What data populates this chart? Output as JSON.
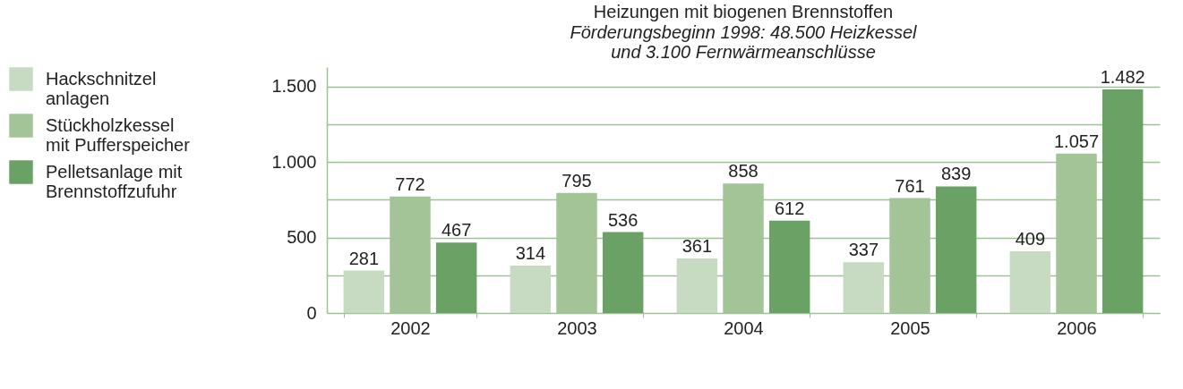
{
  "chart_data": {
    "type": "bar",
    "title": "Heizungen mit biogenen Brennstoffen",
    "subtitle": "Förderungsbeginn 1998: 48.500 Heizkessel und 3.100 Fernwärmeanschlüsse",
    "categories": [
      "2002",
      "2003",
      "2004",
      "2005",
      "2006"
    ],
    "series": [
      {
        "name": "Hackschnitzel anlagen",
        "color": "#c6dbc1",
        "values": [
          281,
          314,
          361,
          337,
          409
        ],
        "value_labels": [
          "281",
          "314",
          "361",
          "337",
          "409"
        ]
      },
      {
        "name": "Stückholzkessel mit Pufferspeicher",
        "color": "#a2c496",
        "values": [
          772,
          795,
          858,
          761,
          1057
        ],
        "value_labels": [
          "772",
          "795",
          "858",
          "761",
          "1.057"
        ]
      },
      {
        "name": "Pelletsanlage mit Brennstoffzufuhr",
        "color": "#6aa265",
        "values": [
          467,
          536,
          612,
          839,
          1482
        ],
        "value_labels": [
          "467",
          "536",
          "612",
          "839",
          "1.482"
        ]
      }
    ],
    "ylim": [
      0,
      1630
    ],
    "yticks": [
      0,
      {
        "value": 250,
        "label": null
      },
      500,
      {
        "value": 750,
        "label": null
      },
      {
        "value": 1000,
        "label": "1.000"
      },
      {
        "value": 1250,
        "label": null
      },
      {
        "value": 1500,
        "label": "1.500"
      }
    ],
    "grid": "y",
    "legend": "left"
  }
}
